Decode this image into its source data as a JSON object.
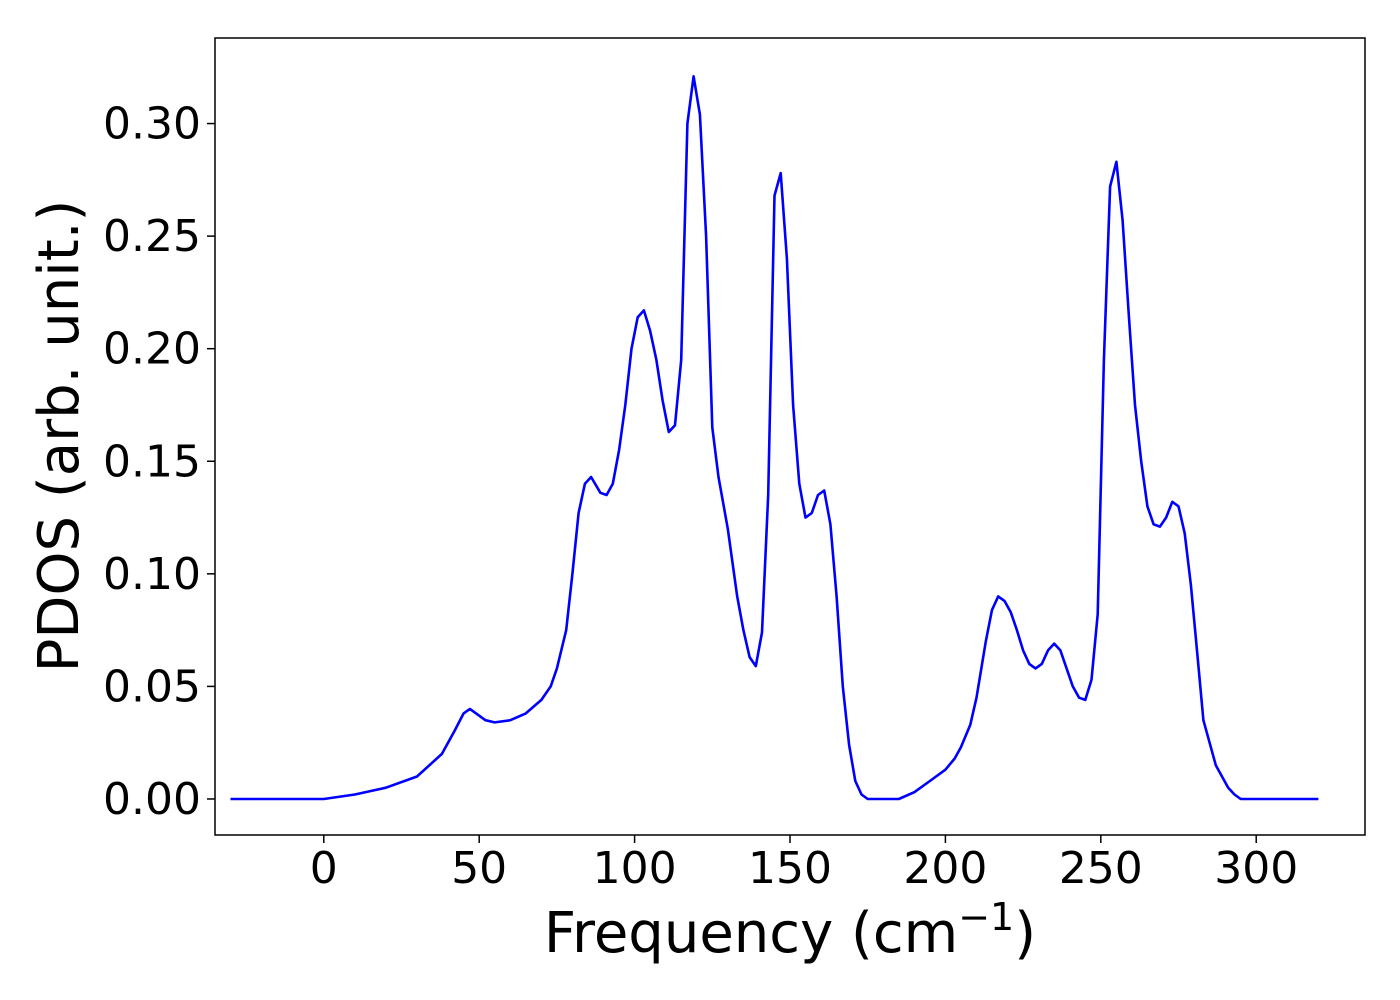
{
  "chart_data": {
    "type": "line",
    "xlabel": "Frequency (cm",
    "xlabel_sup": "−1",
    "xlabel_close": ")",
    "ylabel": "PDOS (arb. unit.)",
    "xlim": [
      -35,
      335
    ],
    "ylim": [
      -0.016,
      0.338
    ],
    "xticks": [
      0,
      50,
      100,
      150,
      200,
      250,
      300
    ],
    "yticks": [
      0.0,
      0.05,
      0.1,
      0.15,
      0.2,
      0.25,
      0.3
    ],
    "ytick_labels": [
      "0.00",
      "0.05",
      "0.10",
      "0.15",
      "0.20",
      "0.25",
      "0.30"
    ],
    "grid": false,
    "series": [
      {
        "color": "#0000ff",
        "x": [
          -30,
          0,
          10,
          20,
          30,
          38,
          42,
          45,
          47,
          49,
          52,
          55,
          60,
          65,
          70,
          73,
          75,
          78,
          80,
          82,
          84,
          86,
          89,
          91,
          93,
          95,
          97,
          99,
          101,
          103,
          105,
          107,
          109,
          111,
          113,
          115,
          117,
          119,
          121,
          123,
          125,
          127,
          130,
          133,
          135,
          137,
          139,
          141,
          143,
          145,
          147,
          149,
          151,
          153,
          155,
          157,
          159,
          161,
          163,
          165,
          167,
          169,
          171,
          173,
          175,
          180,
          185,
          190,
          195,
          200,
          203,
          205,
          208,
          210,
          213,
          215,
          217,
          219,
          221,
          223,
          225,
          227,
          229,
          231,
          233,
          235,
          237,
          239,
          241,
          243,
          245,
          247,
          249,
          251,
          253,
          255,
          257,
          259,
          261,
          263,
          265,
          267,
          269,
          271,
          273,
          275,
          277,
          279,
          281,
          283,
          287,
          291,
          293,
          295,
          300,
          320
        ],
        "y": [
          0.0,
          0.0,
          0.002,
          0.005,
          0.01,
          0.02,
          0.03,
          0.038,
          0.04,
          0.038,
          0.035,
          0.034,
          0.035,
          0.038,
          0.044,
          0.05,
          0.058,
          0.075,
          0.1,
          0.127,
          0.14,
          0.143,
          0.136,
          0.135,
          0.14,
          0.155,
          0.175,
          0.2,
          0.214,
          0.217,
          0.208,
          0.195,
          0.177,
          0.163,
          0.166,
          0.195,
          0.3,
          0.321,
          0.304,
          0.25,
          0.165,
          0.143,
          0.12,
          0.09,
          0.075,
          0.063,
          0.059,
          0.074,
          0.135,
          0.268,
          0.278,
          0.24,
          0.175,
          0.14,
          0.125,
          0.127,
          0.135,
          0.137,
          0.122,
          0.09,
          0.05,
          0.024,
          0.008,
          0.002,
          0.0,
          0.0,
          0.0,
          0.003,
          0.008,
          0.013,
          0.018,
          0.023,
          0.033,
          0.045,
          0.07,
          0.084,
          0.09,
          0.088,
          0.083,
          0.075,
          0.066,
          0.06,
          0.058,
          0.06,
          0.066,
          0.069,
          0.066,
          0.058,
          0.05,
          0.045,
          0.044,
          0.053,
          0.082,
          0.195,
          0.272,
          0.283,
          0.257,
          0.215,
          0.175,
          0.15,
          0.13,
          0.122,
          0.121,
          0.125,
          0.132,
          0.13,
          0.118,
          0.095,
          0.065,
          0.035,
          0.015,
          0.005,
          0.002,
          0.0,
          0.0,
          0.0
        ]
      }
    ]
  }
}
